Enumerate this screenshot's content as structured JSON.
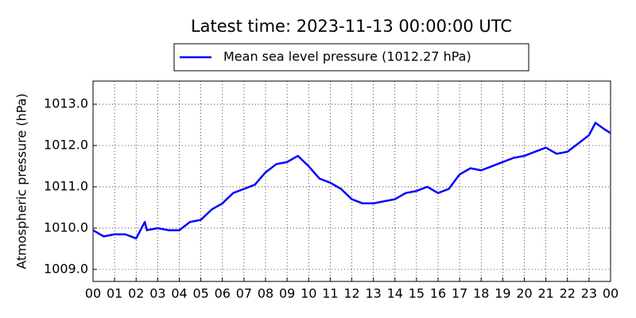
{
  "chart_data": {
    "type": "line",
    "title": "Latest time: 2023-11-13 00:00:00 UTC",
    "y_label": "Atmospheric pressure (hPa)",
    "x": [
      0,
      0.5,
      1,
      1.5,
      2,
      2.4,
      2.5,
      3,
      3.5,
      4,
      4.5,
      5,
      5.5,
      6,
      6.5,
      7,
      7.5,
      8,
      8.5,
      9,
      9.5,
      10,
      10.5,
      11,
      11.5,
      12,
      12.5,
      13,
      13.5,
      14,
      14.5,
      15,
      15.5,
      16,
      16.5,
      17,
      17.5,
      18,
      18.5,
      19,
      19.5,
      20,
      20.5,
      21,
      21.5,
      22,
      22.5,
      23,
      23.3,
      23.7,
      24
    ],
    "series": [
      {
        "name": "Mean sea level pressure (1012.27 hPa)",
        "color": "#0000ff",
        "values": [
          1009.95,
          1009.8,
          1009.85,
          1009.85,
          1009.75,
          1010.15,
          1009.95,
          1010.0,
          1009.95,
          1009.95,
          1010.15,
          1010.2,
          1010.45,
          1010.6,
          1010.85,
          1010.95,
          1011.05,
          1011.35,
          1011.55,
          1011.6,
          1011.75,
          1011.5,
          1011.2,
          1011.1,
          1010.95,
          1010.7,
          1010.6,
          1010.6,
          1010.65,
          1010.7,
          1010.85,
          1010.9,
          1011.0,
          1010.85,
          1010.95,
          1011.3,
          1011.45,
          1011.4,
          1011.5,
          1011.6,
          1011.7,
          1011.75,
          1011.85,
          1011.95,
          1011.8,
          1011.85,
          1012.05,
          1012.25,
          1012.55,
          1012.4,
          1012.3
        ]
      }
    ],
    "xlim": [
      0,
      24
    ],
    "xticks": [
      {
        "value": 0,
        "label": "00"
      },
      {
        "value": 1,
        "label": "01"
      },
      {
        "value": 2,
        "label": "02"
      },
      {
        "value": 3,
        "label": "03"
      },
      {
        "value": 4,
        "label": "04"
      },
      {
        "value": 5,
        "label": "05"
      },
      {
        "value": 6,
        "label": "06"
      },
      {
        "value": 7,
        "label": "07"
      },
      {
        "value": 8,
        "label": "08"
      },
      {
        "value": 9,
        "label": "09"
      },
      {
        "value": 10,
        "label": "10"
      },
      {
        "value": 11,
        "label": "11"
      },
      {
        "value": 12,
        "label": "12"
      },
      {
        "value": 13,
        "label": "13"
      },
      {
        "value": 14,
        "label": "14"
      },
      {
        "value": 15,
        "label": "15"
      },
      {
        "value": 16,
        "label": "16"
      },
      {
        "value": 17,
        "label": "17"
      },
      {
        "value": 18,
        "label": "18"
      },
      {
        "value": 19,
        "label": "19"
      },
      {
        "value": 20,
        "label": "20"
      },
      {
        "value": 21,
        "label": "21"
      },
      {
        "value": 22,
        "label": "22"
      },
      {
        "value": 23,
        "label": "23"
      },
      {
        "value": 24,
        "label": "00"
      }
    ],
    "ylim": [
      1008.71,
      1013.56
    ],
    "yticks": [
      {
        "value": 1009,
        "label": "1009.0"
      },
      {
        "value": 1010,
        "label": "1010.0"
      },
      {
        "value": 1011,
        "label": "1011.0"
      },
      {
        "value": 1012,
        "label": "1012.0"
      },
      {
        "value": 1013,
        "label": "1013.0"
      }
    ],
    "grid": true,
    "legend": "top"
  }
}
